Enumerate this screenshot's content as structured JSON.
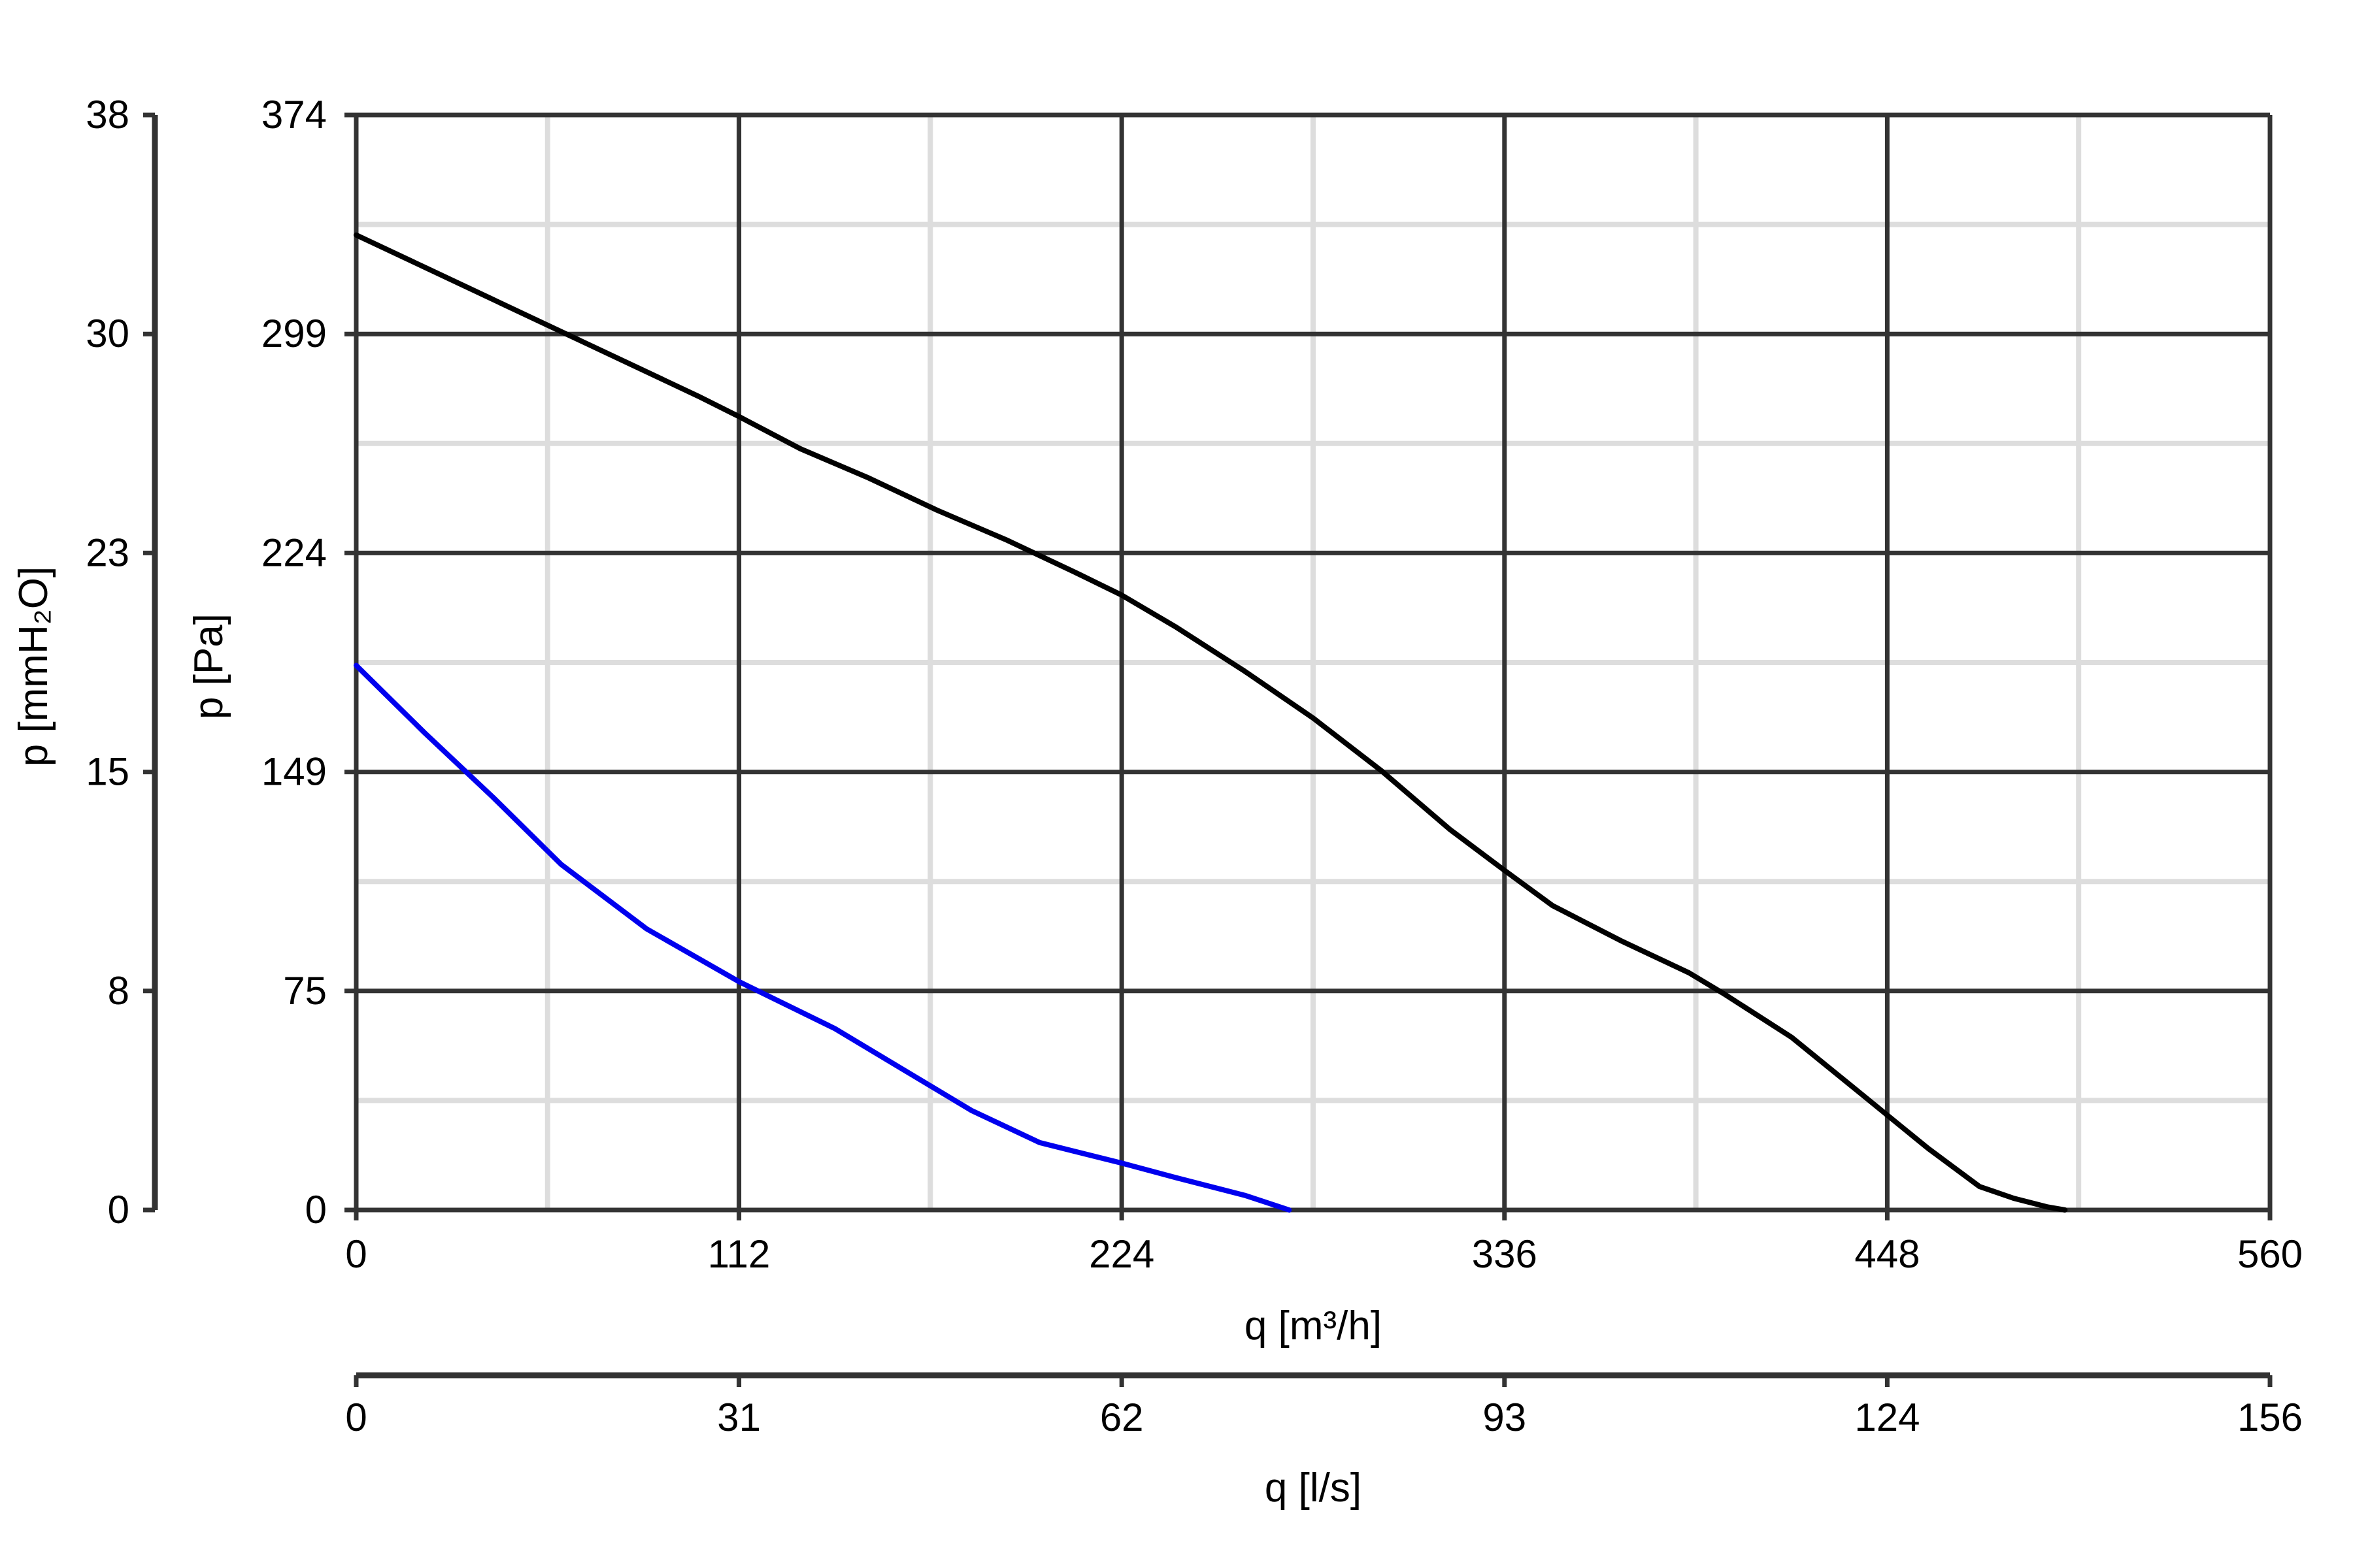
{
  "chart_data": {
    "type": "line",
    "title": "",
    "xlabel": "q [m³/h]",
    "xlabel_secondary": "q [l/s]",
    "ylabel": "p [Pa]",
    "ylabel_secondary": "p [mmH₂O]",
    "xlim": [
      0,
      560
    ],
    "ylim": [
      0,
      374
    ],
    "x_ticks": [
      "0",
      "112",
      "224",
      "336",
      "448",
      "560"
    ],
    "x_ticks_secondary": [
      "0",
      "31",
      "62",
      "93",
      "124",
      "156"
    ],
    "y_ticks": [
      "0",
      "75",
      "149",
      "224",
      "299",
      "374"
    ],
    "y_ticks_secondary": [
      "0",
      "8",
      "15",
      "23",
      "30",
      "38"
    ],
    "grid": true,
    "legend": "none",
    "series": [
      {
        "color": "#000000",
        "x": [
          0,
          20,
          40,
          60,
          80,
          100,
          112,
          130,
          150,
          170,
          190,
          210,
          224,
          240,
          260,
          280,
          300,
          320,
          336,
          350,
          370,
          390,
          400,
          420,
          440,
          460,
          475,
          485,
          495,
          500
        ],
        "y": [
          333,
          322,
          311,
          300,
          289,
          278,
          271,
          260,
          250,
          239,
          229,
          218,
          210,
          199,
          184,
          168,
          150,
          130,
          116,
          104,
          92,
          81,
          74,
          59,
          40,
          21,
          8,
          4,
          1,
          0
        ]
      },
      {
        "color": "#0000ee",
        "x": [
          0,
          20,
          40,
          60,
          85,
          112,
          140,
          160,
          180,
          200,
          224,
          240,
          260,
          273
        ],
        "y": [
          186,
          163,
          141,
          118,
          96,
          78,
          62,
          48,
          34,
          23,
          16,
          11,
          5,
          0
        ]
      }
    ]
  }
}
